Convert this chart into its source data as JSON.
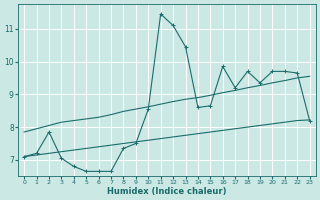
{
  "xlabel": "Humidex (Indice chaleur)",
  "bg_color": "#cce8e5",
  "grid_color": "#b0d8d4",
  "line_color": "#1a6b6b",
  "xlim": [
    -0.5,
    23.5
  ],
  "ylim": [
    6.5,
    11.75
  ],
  "xticks": [
    0,
    1,
    2,
    3,
    4,
    5,
    6,
    7,
    8,
    9,
    10,
    11,
    12,
    13,
    14,
    15,
    16,
    17,
    18,
    19,
    20,
    21,
    22,
    23
  ],
  "yticks": [
    7,
    8,
    9,
    10,
    11
  ],
  "x": [
    0,
    1,
    2,
    3,
    4,
    5,
    6,
    7,
    8,
    9,
    10,
    11,
    12,
    13,
    14,
    15,
    16,
    17,
    18,
    19,
    20,
    21,
    22,
    23
  ],
  "main_y": [
    7.1,
    7.2,
    7.85,
    7.05,
    6.8,
    6.65,
    6.65,
    6.65,
    7.35,
    7.5,
    8.55,
    11.45,
    11.1,
    10.45,
    8.6,
    8.65,
    9.85,
    9.2,
    9.7,
    9.35,
    9.7,
    9.7,
    9.65,
    8.2
  ],
  "trend_upper_y": [
    7.85,
    7.95,
    8.05,
    8.15,
    8.2,
    8.25,
    8.3,
    8.38,
    8.48,
    8.55,
    8.62,
    8.7,
    8.78,
    8.85,
    8.9,
    8.97,
    9.05,
    9.12,
    9.2,
    9.27,
    9.35,
    9.42,
    9.5,
    9.55
  ],
  "trend_lower_y": [
    7.1,
    7.15,
    7.2,
    7.25,
    7.3,
    7.35,
    7.4,
    7.45,
    7.5,
    7.55,
    7.6,
    7.65,
    7.7,
    7.75,
    7.8,
    7.85,
    7.9,
    7.95,
    8.0,
    8.05,
    8.1,
    8.15,
    8.2,
    8.22
  ]
}
